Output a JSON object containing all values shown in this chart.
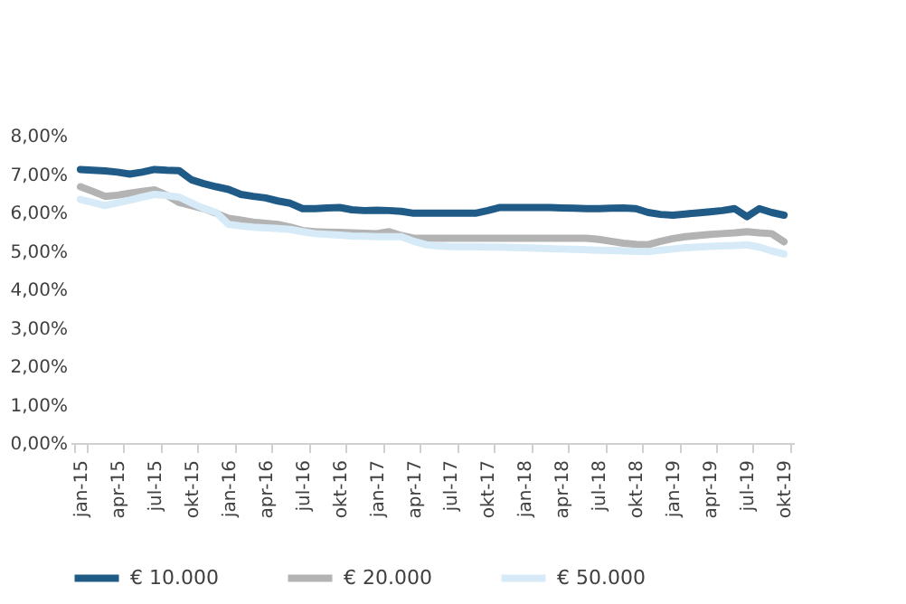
{
  "chart_data": {
    "type": "line",
    "categories": [
      "jan-15",
      null,
      null,
      "apr-15",
      null,
      null,
      "jul-15",
      null,
      null,
      "okt-15",
      null,
      null,
      "jan-16",
      null,
      null,
      "apr-16",
      null,
      null,
      "jul-16",
      null,
      null,
      "okt-16",
      null,
      null,
      "jan-17",
      null,
      null,
      "apr-17",
      null,
      null,
      "jul-17",
      null,
      null,
      "okt-17",
      null,
      null,
      "jan-18",
      null,
      null,
      "apr-18",
      null,
      null,
      "jul-18",
      null,
      null,
      "okt-18",
      null,
      null,
      "jan-19",
      null,
      null,
      "apr-19",
      null,
      null,
      "jul-19",
      null,
      null,
      "okt-19"
    ],
    "series": [
      {
        "name": "€ 10.000",
        "color": "#1f5b86",
        "values": [
          7.12,
          7.1,
          7.08,
          7.05,
          7.0,
          7.05,
          7.12,
          7.1,
          7.09,
          6.85,
          6.75,
          6.67,
          6.6,
          6.47,
          6.42,
          6.38,
          6.3,
          6.24,
          6.1,
          6.1,
          6.12,
          6.13,
          6.07,
          6.05,
          6.06,
          6.05,
          6.03,
          5.98,
          5.98,
          5.98,
          5.98,
          5.98,
          5.98,
          6.05,
          6.13,
          6.13,
          6.13,
          6.13,
          6.13,
          6.12,
          6.11,
          6.1,
          6.1,
          6.11,
          6.12,
          6.1,
          6.0,
          5.95,
          5.93,
          5.96,
          5.99,
          6.02,
          6.05,
          6.1,
          5.89,
          6.1,
          6.0,
          5.93
        ]
      },
      {
        "name": "€ 20.000",
        "color": "#b3b3b3",
        "values": [
          6.67,
          6.55,
          6.42,
          6.45,
          6.5,
          6.55,
          6.59,
          6.45,
          6.26,
          6.18,
          6.1,
          5.98,
          5.85,
          5.8,
          5.75,
          5.72,
          5.69,
          5.62,
          5.53,
          5.5,
          5.49,
          5.48,
          5.47,
          5.46,
          5.45,
          5.5,
          5.4,
          5.33,
          5.33,
          5.33,
          5.33,
          5.33,
          5.33,
          5.33,
          5.33,
          5.33,
          5.33,
          5.33,
          5.33,
          5.33,
          5.33,
          5.33,
          5.3,
          5.25,
          5.2,
          5.17,
          5.16,
          5.25,
          5.32,
          5.37,
          5.4,
          5.43,
          5.45,
          5.47,
          5.5,
          5.47,
          5.45,
          5.24
        ]
      },
      {
        "name": "€ 50.000",
        "color": "#d6ebf7",
        "values": [
          6.34,
          6.26,
          6.18,
          6.25,
          6.32,
          6.4,
          6.47,
          6.44,
          6.4,
          6.25,
          6.1,
          6.0,
          5.69,
          5.65,
          5.62,
          5.6,
          5.58,
          5.56,
          5.5,
          5.45,
          5.43,
          5.41,
          5.39,
          5.38,
          5.37,
          5.37,
          5.37,
          5.25,
          5.16,
          5.13,
          5.11,
          5.11,
          5.11,
          5.1,
          5.1,
          5.09,
          5.08,
          5.07,
          5.06,
          5.05,
          5.04,
          5.03,
          5.02,
          5.01,
          5.0,
          4.99,
          4.98,
          5.02,
          5.05,
          5.08,
          5.1,
          5.12,
          5.13,
          5.14,
          5.16,
          5.1,
          5.0,
          4.92
        ]
      }
    ],
    "ylim": [
      0,
      8
    ],
    "yticks": [
      {
        "value": 0,
        "label": "0,00%"
      },
      {
        "value": 1,
        "label": "1,00%"
      },
      {
        "value": 2,
        "label": "2,00%"
      },
      {
        "value": 3,
        "label": "3,00%"
      },
      {
        "value": 4,
        "label": "4,00%"
      },
      {
        "value": 5,
        "label": "5,00%"
      },
      {
        "value": 6,
        "label": "6,00%"
      },
      {
        "value": 7,
        "label": "7,00%"
      },
      {
        "value": 8,
        "label": "8,00%"
      }
    ],
    "grid": false,
    "legend": "bottom",
    "marker": "none",
    "line_style": "solid"
  }
}
